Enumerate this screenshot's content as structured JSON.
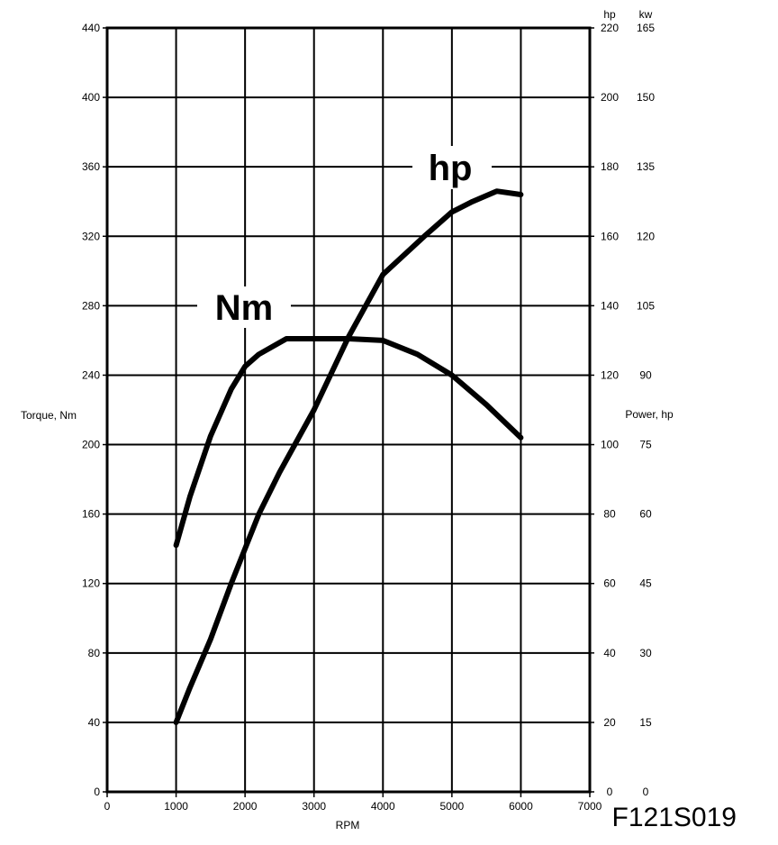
{
  "chart_data": {
    "type": "line",
    "title": "",
    "xlabel": "RPM",
    "ylabel_left": "Torque, Nm",
    "ylabel_right": "Power, hp",
    "right_unit_hp": "hp",
    "right_unit_kw": "kw",
    "xlim": [
      0,
      7000
    ],
    "ylim_left": [
      0,
      440
    ],
    "ylim_right_hp": [
      0,
      220
    ],
    "ylim_right_kw": [
      0,
      165
    ],
    "x_ticks": [
      "0",
      "1000",
      "2000",
      "3000",
      "4000",
      "5000",
      "6000",
      "7000"
    ],
    "y_ticks_left": [
      "0",
      "40",
      "80",
      "120",
      "160",
      "200",
      "240",
      "280",
      "320",
      "360",
      "400",
      "440"
    ],
    "y_ticks_right_hp": [
      "0",
      "20",
      "40",
      "60",
      "80",
      "100",
      "120",
      "140",
      "160",
      "180",
      "200",
      "220"
    ],
    "y_ticks_right_kw": [
      "0",
      "15",
      "30",
      "45",
      "60",
      "75",
      "90",
      "105",
      "120",
      "135",
      "150",
      "165"
    ],
    "grid": true,
    "series": [
      {
        "name": "Nm",
        "axis": "left",
        "x": [
          1000,
          1200,
          1500,
          1800,
          2000,
          2200,
          2600,
          3000,
          3500,
          4000,
          4500,
          5000,
          5500,
          6000
        ],
        "y": [
          142,
          170,
          205,
          232,
          245,
          252,
          261,
          261,
          261,
          260,
          252,
          240,
          223,
          204
        ]
      },
      {
        "name": "hp",
        "axis": "right",
        "x": [
          1000,
          1200,
          1500,
          1800,
          2000,
          2200,
          2500,
          3000,
          3500,
          4000,
          4600,
          5000,
          5300,
          5650,
          6000
        ],
        "y": [
          20,
          30,
          44,
          60,
          70,
          80,
          92,
          110,
          131,
          149,
          160,
          167,
          170,
          173,
          172
        ]
      }
    ],
    "annotation": "F121S019"
  }
}
